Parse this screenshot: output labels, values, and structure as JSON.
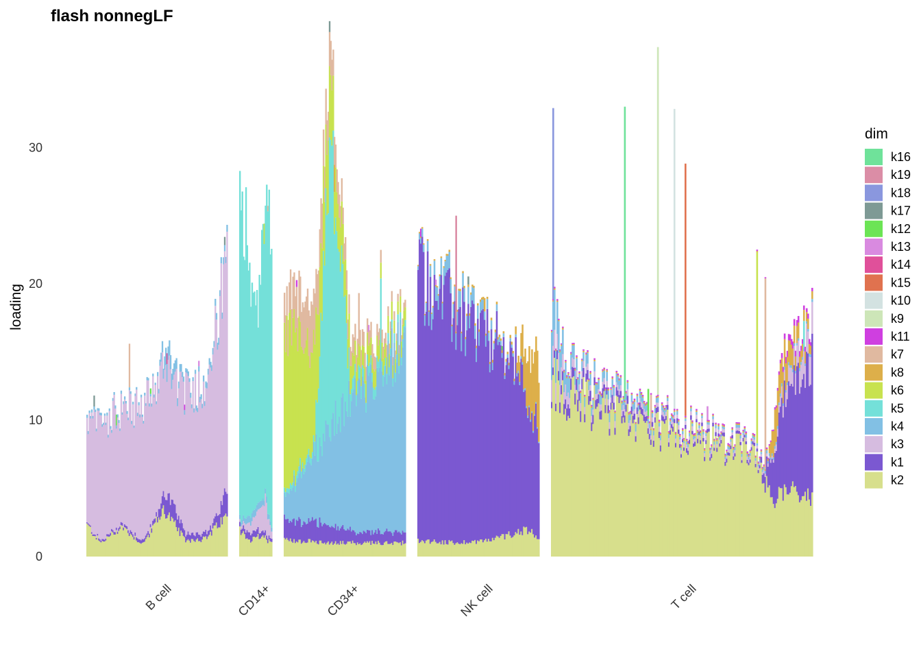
{
  "chart_data": {
    "type": "bar",
    "stacked": true,
    "title": "flash nonnegLF",
    "xlabel": "",
    "ylabel": "loading",
    "ylim": [
      0,
      36.5
    ],
    "yticks": [
      0,
      10,
      20,
      30
    ],
    "grid": false,
    "legend": {
      "title": "dim",
      "position": "right"
    },
    "categories": [
      "B cell",
      "CD14+",
      "CD34+",
      "NK cell",
      "T cell"
    ],
    "series": [
      {
        "name": "k16",
        "color": "#6FE29A"
      },
      {
        "name": "k19",
        "color": "#DB8DA6"
      },
      {
        "name": "k18",
        "color": "#8A97DE"
      },
      {
        "name": "k17",
        "color": "#7E9A95"
      },
      {
        "name": "k12",
        "color": "#6CE455"
      },
      {
        "name": "k13",
        "color": "#D98AE0"
      },
      {
        "name": "k14",
        "color": "#E0509A"
      },
      {
        "name": "k15",
        "color": "#E0724F"
      },
      {
        "name": "k10",
        "color": "#D3E2E1"
      },
      {
        "name": "k9",
        "color": "#CDE6B8"
      },
      {
        "name": "k11",
        "color": "#CF3FE0"
      },
      {
        "name": "k7",
        "color": "#E0B9A0"
      },
      {
        "name": "k8",
        "color": "#DDAF4A"
      },
      {
        "name": "k6",
        "color": "#C8E24F"
      },
      {
        "name": "k5",
        "color": "#74E0D9"
      },
      {
        "name": "k4",
        "color": "#82C0E4"
      },
      {
        "name": "k3",
        "color": "#D6BCE0"
      },
      {
        "name": "k1",
        "color": "#7B58D1"
      },
      {
        "name": "k2",
        "color": "#D7DF8C"
      }
    ],
    "groups": [
      {
        "name": "B cell",
        "n_bars": 120,
        "profiles": [
          {
            "dim": "k2",
            "points": [
              [
                0,
                2.3
              ],
              [
                0.1,
                1.0
              ],
              [
                0.25,
                2.2
              ],
              [
                0.4,
                0.9
              ],
              [
                0.55,
                3.5
              ],
              [
                0.7,
                1.2
              ],
              [
                0.85,
                1.3
              ],
              [
                1,
                3.0
              ]
            ]
          },
          {
            "dim": "k1",
            "points": [
              [
                0,
                0.1
              ],
              [
                0.5,
                0.3
              ],
              [
                0.57,
                1.6
              ],
              [
                0.7,
                0.5
              ],
              [
                0.9,
                0.4
              ],
              [
                1,
                2.0
              ]
            ]
          },
          {
            "dim": "k3",
            "points": [
              [
                0,
                7.3
              ],
              [
                0.1,
                8.6
              ],
              [
                0.25,
                8.5
              ],
              [
                0.4,
                9.8
              ],
              [
                0.55,
                9.4
              ],
              [
                0.7,
                10.2
              ],
              [
                0.85,
                11.0
              ],
              [
                1,
                16.5
              ]
            ]
          },
          {
            "dim": "k4",
            "points": [
              [
                0,
                0.2
              ],
              [
                0.5,
                0.2
              ],
              [
                0.57,
                1.2
              ],
              [
                0.7,
                0.3
              ],
              [
                1,
                0.5
              ]
            ]
          }
        ],
        "spikes": [
          {
            "at": 0.05,
            "dim": "k17",
            "value": 0.8
          },
          {
            "at": 0.21,
            "dim": "k12",
            "value": 0.8
          },
          {
            "at": 0.3,
            "dim": "k7",
            "value": 3.2
          },
          {
            "at": 0.45,
            "dim": "k12",
            "value": 0.4
          },
          {
            "at": 0.57,
            "dim": "k14",
            "value": 0.8
          },
          {
            "at": 0.7,
            "dim": "k11",
            "value": 0.4
          },
          {
            "at": 0.8,
            "dim": "k13",
            "value": 0.4
          },
          {
            "at": 0.985,
            "dim": "k17",
            "value": 0.6
          }
        ]
      },
      {
        "name": "CD14+",
        "n_bars": 27,
        "profiles": [
          {
            "dim": "k2",
            "points": [
              [
                0,
                2.0
              ],
              [
                0.3,
                1.2
              ],
              [
                0.7,
                1.5
              ],
              [
                1,
                1.0
              ]
            ]
          },
          {
            "dim": "k1",
            "points": [
              [
                0,
                0.3
              ],
              [
                0.3,
                0.6
              ],
              [
                0.7,
                0.4
              ],
              [
                1,
                0.2
              ]
            ]
          },
          {
            "dim": "k3",
            "points": [
              [
                0,
                0.2
              ],
              [
                0.5,
                1.0
              ],
              [
                0.8,
                2.5
              ],
              [
                1,
                0.5
              ]
            ]
          },
          {
            "dim": "k4",
            "points": [
              [
                0,
                0.3
              ],
              [
                0.5,
                0.6
              ],
              [
                1,
                0.3
              ]
            ]
          },
          {
            "dim": "k5",
            "points": [
              [
                0,
                24.5
              ],
              [
                0.15,
                22.5
              ],
              [
                0.5,
                13.0
              ],
              [
                0.8,
                19.5
              ],
              [
                1,
                21.0
              ]
            ]
          }
        ],
        "spikes": [
          {
            "at": 0.75,
            "dim": "k6",
            "value": 1.5
          },
          {
            "at": 0.9,
            "dim": "k7",
            "value": 0.4
          }
        ]
      },
      {
        "name": "CD34+",
        "n_bars": 100,
        "profiles": [
          {
            "dim": "k2",
            "points": [
              [
                0,
                1.2
              ],
              [
                0.5,
                1.0
              ],
              [
                1,
                1.0
              ]
            ]
          },
          {
            "dim": "k1",
            "points": [
              [
                0,
                1.5
              ],
              [
                0.3,
                1.5
              ],
              [
                0.6,
                0.8
              ],
              [
                1,
                0.8
              ]
            ]
          },
          {
            "dim": "k4",
            "points": [
              [
                0,
                1.5
              ],
              [
                0.2,
                4.5
              ],
              [
                0.5,
                9.0
              ],
              [
                1,
                14.0
              ]
            ]
          },
          {
            "dim": "k6",
            "points": [
              [
                0,
                12.0
              ],
              [
                0.2,
                8.0
              ],
              [
                0.45,
                3.0
              ],
              [
                0.6,
                1.5
              ],
              [
                1,
                1.0
              ]
            ]
          },
          {
            "dim": "k7",
            "points": [
              [
                0,
                2.5
              ],
              [
                0.25,
                3.5
              ],
              [
                0.45,
                1.5
              ],
              [
                1,
                0.5
              ]
            ]
          },
          {
            "dim": "k5",
            "points": [
              [
                0,
                0.3
              ],
              [
                0.25,
                0.6
              ],
              [
                0.38,
                20.0
              ],
              [
                0.45,
                14.0
              ],
              [
                0.55,
                1.0
              ],
              [
                1,
                0.5
              ]
            ]
          }
        ],
        "spikes": [
          {
            "at": 0.37,
            "dim": "k17",
            "value": 0.8
          },
          {
            "at": 0.41,
            "dim": "k8",
            "value": 2.0
          },
          {
            "at": 0.62,
            "dim": "k7",
            "value": 2.5
          },
          {
            "at": 0.8,
            "dim": "k5",
            "value": 5.0
          },
          {
            "at": 0.1,
            "dim": "k11",
            "value": 0.5
          },
          {
            "at": 0.7,
            "dim": "k13",
            "value": 0.5
          }
        ]
      },
      {
        "name": "NK cell",
        "n_bars": 90,
        "profiles": [
          {
            "dim": "k2",
            "points": [
              [
                0,
                1.2
              ],
              [
                0.3,
                1.0
              ],
              [
                0.6,
                1.2
              ],
              [
                0.9,
                2.0
              ],
              [
                1,
                1.5
              ]
            ]
          },
          {
            "dim": "k1",
            "points": [
              [
                0,
                19.8
              ],
              [
                0.2,
                17.5
              ],
              [
                0.4,
                16.0
              ],
              [
                0.6,
                14.5
              ],
              [
                0.8,
                12.5
              ],
              [
                0.9,
                10.0
              ],
              [
                1,
                8.0
              ]
            ]
          },
          {
            "dim": "k4",
            "points": [
              [
                0,
                0.3
              ],
              [
                0.1,
                1.0
              ],
              [
                0.4,
                1.2
              ],
              [
                0.7,
                0.3
              ],
              [
                1,
                0.1
              ]
            ]
          },
          {
            "dim": "k8",
            "points": [
              [
                0,
                0.1
              ],
              [
                0.8,
                0.2
              ],
              [
                0.9,
                3.5
              ],
              [
                1,
                5.0
              ]
            ]
          }
        ],
        "spikes": [
          {
            "at": 0.31,
            "dim": "k19",
            "value": 8.5
          },
          {
            "at": 0.02,
            "dim": "k11",
            "value": 0.6
          },
          {
            "at": 0.15,
            "dim": "k13",
            "value": 0.4
          },
          {
            "at": 0.42,
            "dim": "k17",
            "value": 0.6
          },
          {
            "at": 0.55,
            "dim": "k8",
            "value": 0.8
          },
          {
            "at": 0.7,
            "dim": "k12",
            "value": 0.3
          }
        ]
      },
      {
        "name": "T cell",
        "n_bars": 190,
        "profiles": [
          {
            "dim": "k2",
            "points": [
              [
                0,
                12.5
              ],
              [
                0.1,
                11.5
              ],
              [
                0.3,
                10.0
              ],
              [
                0.5,
                8.8
              ],
              [
                0.7,
                7.8
              ],
              [
                0.8,
                7.0
              ],
              [
                0.82,
                5.5
              ],
              [
                0.85,
                4.0
              ],
              [
                0.9,
                5.0
              ],
              [
                1,
                4.5
              ]
            ]
          },
          {
            "dim": "k1",
            "points": [
              [
                0,
                0.5
              ],
              [
                0.05,
                0.8
              ],
              [
                0.2,
                0.6
              ],
              [
                0.5,
                0.3
              ],
              [
                0.8,
                0.2
              ],
              [
                0.83,
                1.5
              ],
              [
                0.9,
                7.0
              ],
              [
                1,
                10.0
              ]
            ]
          },
          {
            "dim": "k4",
            "points": [
              [
                0,
                3.0
              ],
              [
                0.05,
                1.5
              ],
              [
                0.1,
                0.8
              ],
              [
                0.5,
                0.2
              ],
              [
                1,
                0.2
              ]
            ]
          },
          {
            "dim": "k3",
            "points": [
              [
                0,
                1.5
              ],
              [
                0.1,
                0.5
              ],
              [
                0.5,
                0.3
              ],
              [
                0.85,
                0.2
              ],
              [
                0.9,
                1.0
              ],
              [
                1,
                2.0
              ]
            ]
          },
          {
            "dim": "k8",
            "points": [
              [
                0,
                0.1
              ],
              [
                0.83,
                0.1
              ],
              [
                0.86,
                2.5
              ],
              [
                0.95,
                1.0
              ],
              [
                1,
                0.5
              ]
            ]
          },
          {
            "dim": "k11",
            "points": [
              [
                0,
                0.1
              ],
              [
                0.85,
                0.1
              ],
              [
                0.9,
                0.5
              ],
              [
                1,
                0.3
              ]
            ]
          }
        ],
        "spikes": [
          {
            "at": 0.005,
            "dim": "k18",
            "value": 14.0
          },
          {
            "at": 0.28,
            "dim": "k16",
            "value": 21.5
          },
          {
            "at": 0.405,
            "dim": "k9",
            "value": 25.5
          },
          {
            "at": 0.47,
            "dim": "k10",
            "value": 22.0
          },
          {
            "at": 0.515,
            "dim": "k15",
            "value": 18.5
          },
          {
            "at": 0.38,
            "dim": "k7",
            "value": 2.5
          },
          {
            "at": 0.79,
            "dim": "k6",
            "value": 14.0
          },
          {
            "at": 0.82,
            "dim": "k7",
            "value": 14.0
          },
          {
            "at": 0.37,
            "dim": "k12",
            "value": 2.0
          },
          {
            "at": 0.6,
            "dim": "k13",
            "value": 1.0
          },
          {
            "at": 0.97,
            "dim": "k5",
            "value": 2.0
          }
        ]
      }
    ]
  }
}
